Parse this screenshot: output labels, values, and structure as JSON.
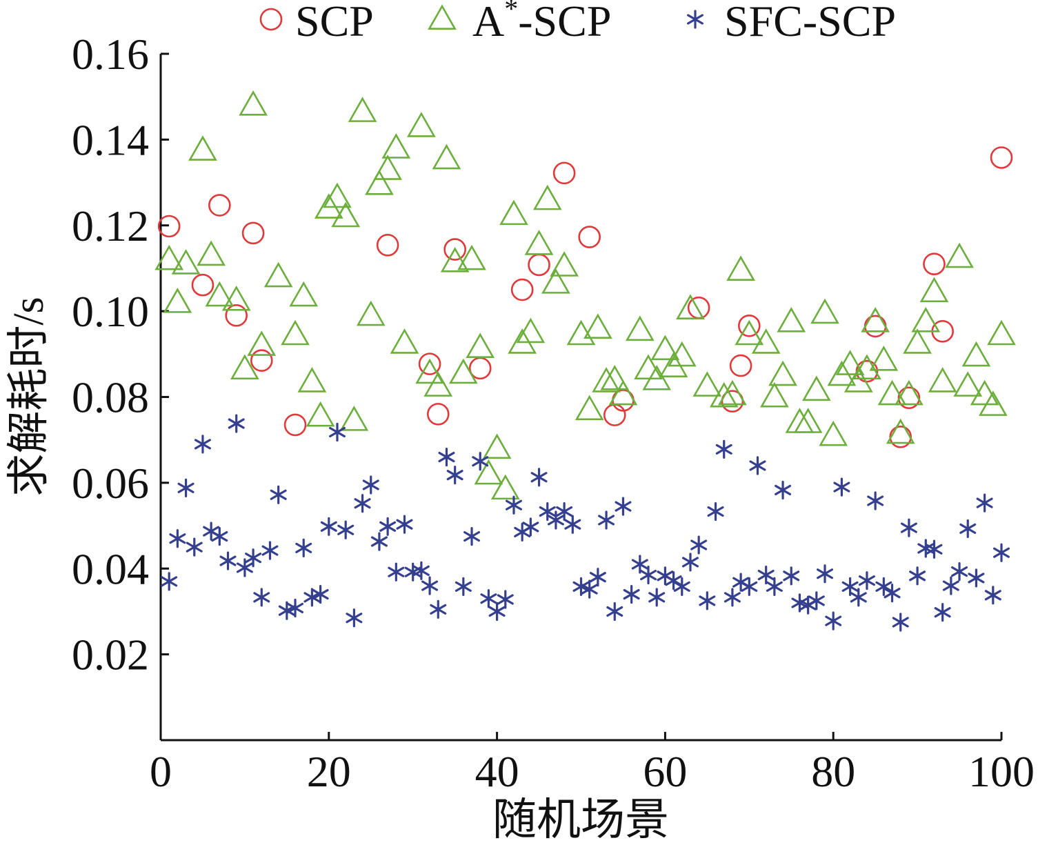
{
  "chart_data": {
    "type": "scatter",
    "title": "",
    "xlabel": "随机场景",
    "ylabel": "求解耗时/s",
    "xlim": [
      0,
      100
    ],
    "ylim": [
      0,
      0.16
    ],
    "xticks": [
      "0",
      "20",
      "40",
      "60",
      "80",
      "100"
    ],
    "yticks": [
      "0.02",
      "0.04",
      "0.06",
      "0.08",
      "0.10",
      "0.12",
      "0.14",
      "0.16"
    ],
    "grid": false,
    "legend_position": "top",
    "series": [
      {
        "name": "SCP",
        "legend_label": "SCP",
        "legend_sup": "",
        "legend_rest": "",
        "marker": "circle",
        "color": "#e0393a",
        "points": [
          [
            1,
            0.1198
          ],
          [
            5,
            0.1061
          ],
          [
            7,
            0.1247
          ],
          [
            9,
            0.099
          ],
          [
            11,
            0.1182
          ],
          [
            12,
            0.0885
          ],
          [
            16,
            0.0735
          ],
          [
            27,
            0.1154
          ],
          [
            32,
            0.0877
          ],
          [
            33,
            0.076
          ],
          [
            35,
            0.1144
          ],
          [
            38,
            0.0867
          ],
          [
            43,
            0.105
          ],
          [
            45,
            0.1108
          ],
          [
            48,
            0.1322
          ],
          [
            51,
            0.1173
          ],
          [
            54,
            0.0758
          ],
          [
            55,
            0.0792
          ],
          [
            64,
            0.1008
          ],
          [
            68,
            0.079
          ],
          [
            69,
            0.0873
          ],
          [
            70,
            0.0966
          ],
          [
            84,
            0.086
          ],
          [
            85,
            0.0965
          ],
          [
            88,
            0.0707
          ],
          [
            89,
            0.0798
          ],
          [
            92,
            0.111
          ],
          [
            93,
            0.0953
          ],
          [
            100,
            0.1358
          ]
        ]
      },
      {
        "name": "A*-SCP",
        "legend_label": "A",
        "legend_sup": "*",
        "legend_rest": "-SCP",
        "marker": "triangle",
        "color": "#6bae3b",
        "points": [
          [
            1,
            0.112
          ],
          [
            2,
            0.102
          ],
          [
            3,
            0.111
          ],
          [
            5,
            0.1375
          ],
          [
            6,
            0.113
          ],
          [
            7,
            0.1035
          ],
          [
            9,
            0.1025
          ],
          [
            10,
            0.0865
          ],
          [
            11,
            0.148
          ],
          [
            12,
            0.092
          ],
          [
            14,
            0.108
          ],
          [
            16,
            0.0945
          ],
          [
            17,
            0.1035
          ],
          [
            18,
            0.0835
          ],
          [
            19,
            0.0755
          ],
          [
            20,
            0.124
          ],
          [
            21,
            0.1265
          ],
          [
            22,
            0.122
          ],
          [
            23,
            0.0745
          ],
          [
            24,
            0.1465
          ],
          [
            25,
            0.099
          ],
          [
            26,
            0.1295
          ],
          [
            27,
            0.133
          ],
          [
            28,
            0.138
          ],
          [
            29,
            0.0925
          ],
          [
            31,
            0.143
          ],
          [
            32,
            0.0855
          ],
          [
            33,
            0.0825
          ],
          [
            34,
            0.1355
          ],
          [
            35,
            0.1115
          ],
          [
            36,
            0.0855
          ],
          [
            37,
            0.112
          ],
          [
            38,
            0.0915
          ],
          [
            39,
            0.062
          ],
          [
            40,
            0.068
          ],
          [
            41,
            0.0585
          ],
          [
            42,
            0.1225
          ],
          [
            43,
            0.0925
          ],
          [
            44,
            0.095
          ],
          [
            45,
            0.1155
          ],
          [
            46,
            0.126
          ],
          [
            47,
            0.1065
          ],
          [
            48,
            0.1105
          ],
          [
            50,
            0.0945
          ],
          [
            51,
            0.077
          ],
          [
            52,
            0.096
          ],
          [
            53,
            0.0835
          ],
          [
            54,
            0.084
          ],
          [
            55,
            0.0805
          ],
          [
            57,
            0.0955
          ],
          [
            58,
            0.0865
          ],
          [
            59,
            0.084
          ],
          [
            60,
            0.091
          ],
          [
            61,
            0.087
          ],
          [
            62,
            0.0895
          ],
          [
            63,
            0.1005
          ],
          [
            65,
            0.0825
          ],
          [
            67,
            0.08
          ],
          [
            68,
            0.0805
          ],
          [
            69,
            0.1095
          ],
          [
            70,
            0.0945
          ],
          [
            72,
            0.0925
          ],
          [
            73,
            0.08
          ],
          [
            74,
            0.085
          ],
          [
            75,
            0.0975
          ],
          [
            76,
            0.074
          ],
          [
            77,
            0.074
          ],
          [
            78,
            0.0815
          ],
          [
            79,
            0.0995
          ],
          [
            80,
            0.071
          ],
          [
            81,
            0.085
          ],
          [
            82,
            0.0875
          ],
          [
            83,
            0.0835
          ],
          [
            84,
            0.0865
          ],
          [
            85,
            0.0975
          ],
          [
            86,
            0.0885
          ],
          [
            87,
            0.0805
          ],
          [
            88,
            0.0715
          ],
          [
            89,
            0.0805
          ],
          [
            90,
            0.0925
          ],
          [
            91,
            0.0975
          ],
          [
            92,
            0.1045
          ],
          [
            93,
            0.0835
          ],
          [
            95,
            0.1125
          ],
          [
            96,
            0.0825
          ],
          [
            97,
            0.0895
          ],
          [
            98,
            0.0805
          ],
          [
            99,
            0.078
          ],
          [
            100,
            0.0945
          ]
        ]
      },
      {
        "name": "SFC-SCP",
        "legend_label": "SFC-SCP",
        "legend_sup": "",
        "legend_rest": "",
        "marker": "asterisk",
        "color": "#34408f",
        "points": [
          [
            1,
            0.037
          ],
          [
            2,
            0.047
          ],
          [
            3,
            0.0588
          ],
          [
            4,
            0.045
          ],
          [
            5,
            0.069
          ],
          [
            6,
            0.0487
          ],
          [
            7,
            0.0475
          ],
          [
            8,
            0.0418
          ],
          [
            9,
            0.0738
          ],
          [
            10,
            0.0402
          ],
          [
            11,
            0.0425
          ],
          [
            12,
            0.0333
          ],
          [
            13,
            0.0442
          ],
          [
            14,
            0.0572
          ],
          [
            15,
            0.0302
          ],
          [
            16,
            0.0308
          ],
          [
            17,
            0.0448
          ],
          [
            18,
            0.0333
          ],
          [
            19,
            0.034
          ],
          [
            20,
            0.0498
          ],
          [
            21,
            0.0718
          ],
          [
            22,
            0.049
          ],
          [
            23,
            0.0285
          ],
          [
            24,
            0.0552
          ],
          [
            25,
            0.0595
          ],
          [
            26,
            0.0463
          ],
          [
            27,
            0.0498
          ],
          [
            28,
            0.0392
          ],
          [
            29,
            0.0503
          ],
          [
            30,
            0.0392
          ],
          [
            31,
            0.0395
          ],
          [
            32,
            0.036
          ],
          [
            33,
            0.0305
          ],
          [
            34,
            0.066
          ],
          [
            35,
            0.0618
          ],
          [
            36,
            0.0358
          ],
          [
            37,
            0.0475
          ],
          [
            38,
            0.065
          ],
          [
            39,
            0.033
          ],
          [
            40,
            0.03
          ],
          [
            41,
            0.0328
          ],
          [
            42,
            0.0548
          ],
          [
            43,
            0.0485
          ],
          [
            44,
            0.0497
          ],
          [
            45,
            0.0613
          ],
          [
            46,
            0.0533
          ],
          [
            47,
            0.0513
          ],
          [
            48,
            0.0533
          ],
          [
            49,
            0.0503
          ],
          [
            50,
            0.0358
          ],
          [
            51,
            0.0352
          ],
          [
            52,
            0.038
          ],
          [
            53,
            0.0513
          ],
          [
            54,
            0.03
          ],
          [
            55,
            0.0545
          ],
          [
            56,
            0.034
          ],
          [
            57,
            0.041
          ],
          [
            58,
            0.0385
          ],
          [
            59,
            0.0333
          ],
          [
            60,
            0.0383
          ],
          [
            61,
            0.0372
          ],
          [
            62,
            0.0358
          ],
          [
            63,
            0.0415
          ],
          [
            64,
            0.0455
          ],
          [
            65,
            0.0325
          ],
          [
            66,
            0.0533
          ],
          [
            67,
            0.0678
          ],
          [
            68,
            0.0333
          ],
          [
            69,
            0.0368
          ],
          [
            70,
            0.0358
          ],
          [
            71,
            0.064
          ],
          [
            72,
            0.0385
          ],
          [
            73,
            0.0358
          ],
          [
            74,
            0.0583
          ],
          [
            75,
            0.0383
          ],
          [
            76,
            0.032
          ],
          [
            77,
            0.0315
          ],
          [
            78,
            0.0325
          ],
          [
            79,
            0.0388
          ],
          [
            80,
            0.0278
          ],
          [
            81,
            0.059
          ],
          [
            82,
            0.0358
          ],
          [
            83,
            0.0333
          ],
          [
            84,
            0.0372
          ],
          [
            85,
            0.0558
          ],
          [
            86,
            0.0358
          ],
          [
            87,
            0.0343
          ],
          [
            88,
            0.0275
          ],
          [
            89,
            0.0495
          ],
          [
            90,
            0.0383
          ],
          [
            91,
            0.0447
          ],
          [
            92,
            0.0445
          ],
          [
            93,
            0.0298
          ],
          [
            94,
            0.036
          ],
          [
            95,
            0.0393
          ],
          [
            96,
            0.0493
          ],
          [
            97,
            0.0378
          ],
          [
            98,
            0.0553
          ],
          [
            99,
            0.0338
          ],
          [
            100,
            0.0437
          ]
        ]
      }
    ]
  }
}
